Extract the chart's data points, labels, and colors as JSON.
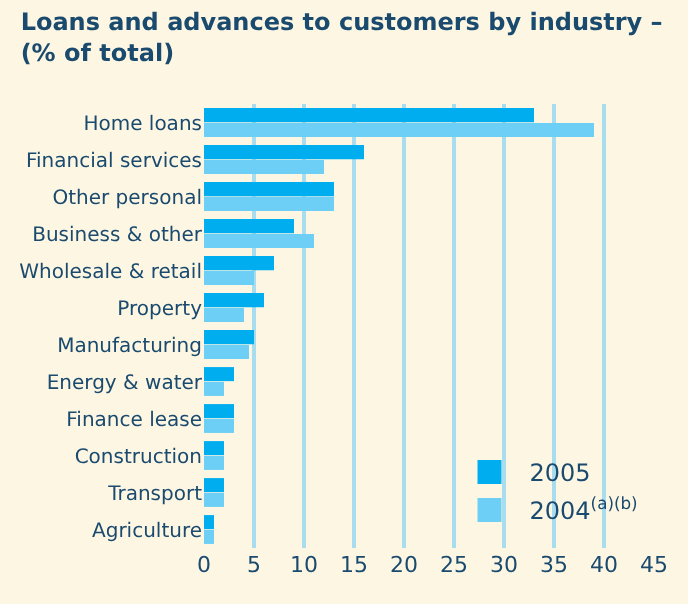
{
  "chart_data": {
    "type": "bar",
    "orientation": "horizontal",
    "title": "Loans and advances to customers by industry –\n(% of total)",
    "categories": [
      "Home loans",
      "Financial services",
      "Other personal",
      "Business & other",
      "Wholesale & retail",
      "Property",
      "Manufacturing",
      "Energy & water",
      "Finance lease",
      "Construction",
      "Transport",
      "Agriculture"
    ],
    "series": [
      {
        "name": "2005",
        "color": "#00aeef",
        "values": [
          33,
          16,
          13,
          9,
          7,
          6,
          5,
          3,
          3,
          2,
          2,
          1
        ]
      },
      {
        "name": "2004$^{(a)(b)}$",
        "color": "#6dcff6",
        "values": [
          39,
          12,
          13,
          11,
          5,
          4,
          4.5,
          2,
          3,
          2,
          2,
          1
        ]
      }
    ],
    "xlim": [
      0,
      45
    ],
    "xticks": [
      0,
      5,
      10,
      15,
      20,
      25,
      30,
      35,
      40,
      45
    ],
    "grid": "x",
    "legend": "bottom right"
  }
}
